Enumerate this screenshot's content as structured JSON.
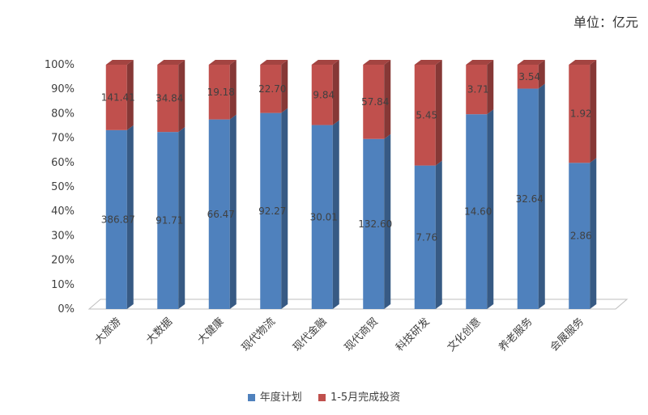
{
  "unit_label": "单位：亿元",
  "colors": {
    "plan": "#4F81BD",
    "done": "#C0504D"
  },
  "chart_data": {
    "type": "bar",
    "stacked": "percent",
    "categories": [
      "大旅游",
      "大数据",
      "大健康",
      "现代物流",
      "现代金融",
      "现代商贸",
      "科技研发",
      "文化创意",
      "养老服务",
      "会展服务"
    ],
    "series": [
      {
        "name": "年度计划",
        "values": [
          386.87,
          91.71,
          66.47,
          92.27,
          30.01,
          132.6,
          7.76,
          14.6,
          32.64,
          2.86
        ]
      },
      {
        "name": "1-5月完成投资",
        "values": [
          141.41,
          34.84,
          19.18,
          22.7,
          9.84,
          57.84,
          5.45,
          3.71,
          3.54,
          1.92
        ]
      }
    ],
    "display": [
      [
        "386.87",
        "91.71",
        "66.47",
        "92.27",
        "30.01",
        "132.60",
        "7.76",
        "14.60",
        "32.64",
        "2.86"
      ],
      [
        "141.41",
        "34.84",
        "19.18",
        "22.70",
        "9.84",
        "57.84",
        "5.45",
        "3.71",
        "3.54",
        "1.92"
      ]
    ],
    "yticks": [
      "0%",
      "10%",
      "20%",
      "30%",
      "40%",
      "50%",
      "60%",
      "70%",
      "80%",
      "90%",
      "100%"
    ],
    "ylim": [
      0,
      100
    ],
    "legend": "bottom",
    "grid": false
  }
}
